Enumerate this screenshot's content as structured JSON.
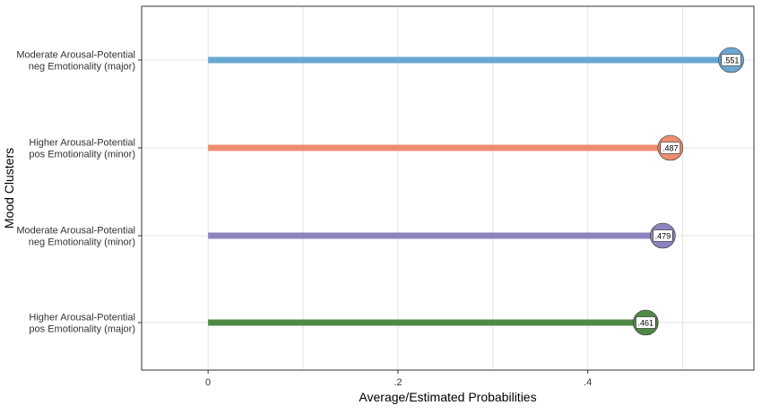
{
  "chart_data": {
    "type": "lollipop",
    "xlabel": "Average/Estimated Probabilities",
    "ylabel": "Mood Clusters",
    "xlim": [
      -0.07,
      0.575
    ],
    "x_ticks": [
      {
        "value": 0,
        "label": "0"
      },
      {
        "value": 0.2,
        "label": ".2"
      },
      {
        "value": 0.4,
        "label": ".4"
      }
    ],
    "grid": true,
    "categories": [
      {
        "label_lines": [
          "Moderate Arousal-Potential",
          "neg Emotionality (major)"
        ],
        "value": 0.551,
        "value_label": ".551",
        "color": "#6aa8d2"
      },
      {
        "label_lines": [
          "Higher Arousal-Potential",
          "pos Emotionality (minor)"
        ],
        "value": 0.487,
        "value_label": ".487",
        "color": "#ee8d72"
      },
      {
        "label_lines": [
          "Moderate Arousal-Potential",
          "neg Emotionality (minor)"
        ],
        "value": 0.479,
        "value_label": ".479",
        "color": "#8c84bf"
      },
      {
        "label_lines": [
          "Higher Arousal-Potential",
          "pos Emotionality (major)"
        ],
        "value": 0.461,
        "value_label": ".461",
        "color": "#4f8a45"
      }
    ]
  }
}
